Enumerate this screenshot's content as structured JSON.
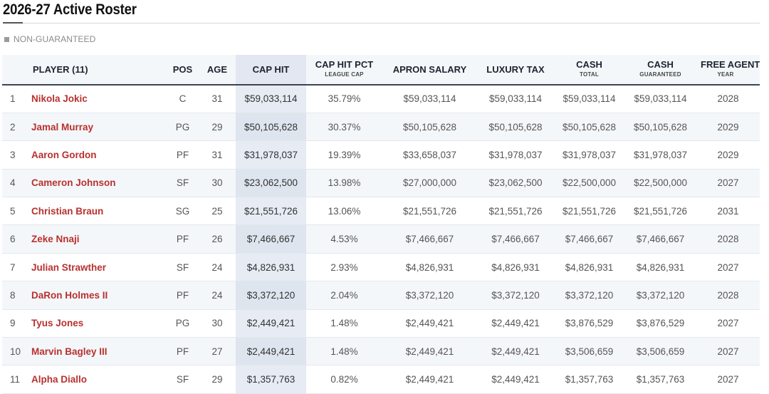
{
  "page": {
    "title": "2026-27 Active Roster",
    "non_guaranteed_label": "NON-GUARANTEED"
  },
  "table": {
    "headers": {
      "player": "PLAYER (11)",
      "pos": "POS",
      "age": "AGE",
      "cap_hit": "CAP HIT",
      "cap_hit_pct": "CAP HIT PCT",
      "cap_hit_pct_sub": "LEAGUE CAP",
      "apron_salary": "APRON SALARY",
      "luxury_tax": "LUXURY TAX",
      "cash_total": "CASH",
      "cash_total_sub": "TOTAL",
      "cash_guaranteed": "CASH",
      "cash_guaranteed_sub": "GUARANTEED",
      "free_agent": "FREE AGENT",
      "free_agent_sub": "YEAR"
    },
    "rows": [
      {
        "num": "1",
        "name": "Nikola Jokic",
        "pos": "C",
        "age": "31",
        "cap_hit": "$59,033,114",
        "pct": "35.79%",
        "apron": "$59,033,114",
        "tax": "$59,033,114",
        "cash_total": "$59,033,114",
        "cash_guar": "$59,033,114",
        "fa_year": "2028"
      },
      {
        "num": "2",
        "name": "Jamal Murray",
        "pos": "PG",
        "age": "29",
        "cap_hit": "$50,105,628",
        "pct": "30.37%",
        "apron": "$50,105,628",
        "tax": "$50,105,628",
        "cash_total": "$50,105,628",
        "cash_guar": "$50,105,628",
        "fa_year": "2029"
      },
      {
        "num": "3",
        "name": "Aaron Gordon",
        "pos": "PF",
        "age": "31",
        "cap_hit": "$31,978,037",
        "pct": "19.39%",
        "apron": "$33,658,037",
        "tax": "$31,978,037",
        "cash_total": "$31,978,037",
        "cash_guar": "$31,978,037",
        "fa_year": "2029"
      },
      {
        "num": "4",
        "name": "Cameron Johnson",
        "pos": "SF",
        "age": "30",
        "cap_hit": "$23,062,500",
        "pct": "13.98%",
        "apron": "$27,000,000",
        "tax": "$23,062,500",
        "cash_total": "$22,500,000",
        "cash_guar": "$22,500,000",
        "fa_year": "2027"
      },
      {
        "num": "5",
        "name": "Christian Braun",
        "pos": "SG",
        "age": "25",
        "cap_hit": "$21,551,726",
        "pct": "13.06%",
        "apron": "$21,551,726",
        "tax": "$21,551,726",
        "cash_total": "$21,551,726",
        "cash_guar": "$21,551,726",
        "fa_year": "2031"
      },
      {
        "num": "6",
        "name": "Zeke Nnaji",
        "pos": "PF",
        "age": "26",
        "cap_hit": "$7,466,667",
        "pct": "4.53%",
        "apron": "$7,466,667",
        "tax": "$7,466,667",
        "cash_total": "$7,466,667",
        "cash_guar": "$7,466,667",
        "fa_year": "2028"
      },
      {
        "num": "7",
        "name": "Julian Strawther",
        "pos": "SF",
        "age": "24",
        "cap_hit": "$4,826,931",
        "pct": "2.93%",
        "apron": "$4,826,931",
        "tax": "$4,826,931",
        "cash_total": "$4,826,931",
        "cash_guar": "$4,826,931",
        "fa_year": "2027"
      },
      {
        "num": "8",
        "name": "DaRon Holmes II",
        "pos": "PF",
        "age": "24",
        "cap_hit": "$3,372,120",
        "pct": "2.04%",
        "apron": "$3,372,120",
        "tax": "$3,372,120",
        "cash_total": "$3,372,120",
        "cash_guar": "$3,372,120",
        "fa_year": "2028"
      },
      {
        "num": "9",
        "name": "Tyus Jones",
        "pos": "PG",
        "age": "30",
        "cap_hit": "$2,449,421",
        "pct": "1.48%",
        "apron": "$2,449,421",
        "tax": "$2,449,421",
        "cash_total": "$3,876,529",
        "cash_guar": "$3,876,529",
        "fa_year": "2027"
      },
      {
        "num": "10",
        "name": "Marvin Bagley III",
        "pos": "PF",
        "age": "27",
        "cap_hit": "$2,449,421",
        "pct": "1.48%",
        "apron": "$2,449,421",
        "tax": "$2,449,421",
        "cash_total": "$3,506,659",
        "cash_guar": "$3,506,659",
        "fa_year": "2027"
      },
      {
        "num": "11",
        "name": "Alpha Diallo",
        "pos": "SF",
        "age": "29",
        "cap_hit": "$1,357,763",
        "pct": "0.82%",
        "apron": "$2,449,421",
        "tax": "$2,449,421",
        "cash_total": "$1,357,763",
        "cash_guar": "$1,357,763",
        "fa_year": "2027"
      }
    ]
  },
  "colors": {
    "player_name": "#b8312f",
    "cap_hit_column": "#e6ebf4",
    "header_rule": "#3a4452"
  }
}
